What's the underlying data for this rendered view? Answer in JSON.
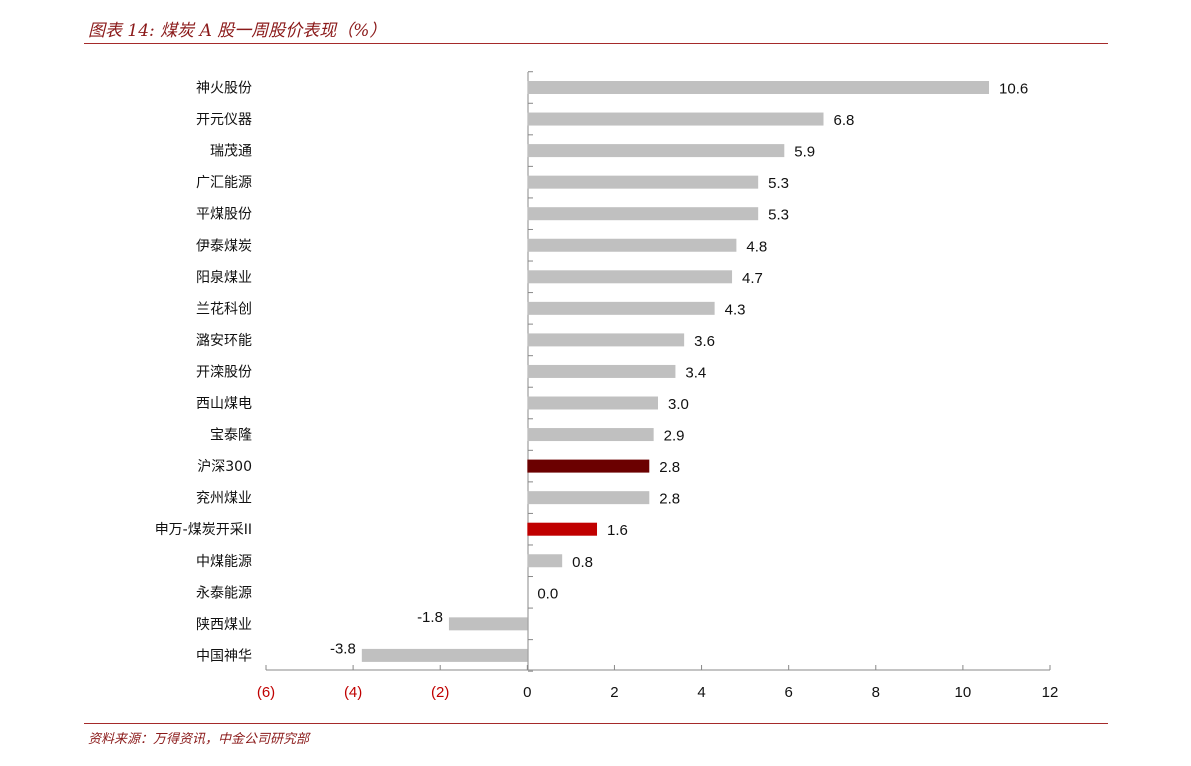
{
  "header": {
    "title": "图表 14:  煤炭 A 股一周股价表现（%）"
  },
  "footer": {
    "source": "资料来源：万得资讯，中金公司研究部"
  },
  "colors": {
    "default_bar": "#c0c0c0",
    "hs300_bar": "#6b0000",
    "sw_index_bar": "#c00000",
    "negative_tick": "#c00000",
    "axis": "#888888"
  },
  "chart_data": {
    "type": "bar",
    "orientation": "horizontal",
    "categories": [
      "神火股份",
      "开元仪器",
      "瑞茂通",
      "广汇能源",
      "平煤股份",
      "伊泰煤炭",
      "阳泉煤业",
      "兰花科创",
      "潞安环能",
      "开滦股份",
      "西山煤电",
      "宝泰隆",
      "沪深300",
      "兖州煤业",
      "申万-煤炭开采II",
      "中煤能源",
      "永泰能源",
      "陕西煤业",
      "中国神华"
    ],
    "values": [
      10.6,
      6.8,
      5.9,
      5.3,
      5.3,
      4.8,
      4.7,
      4.3,
      3.6,
      3.4,
      3.0,
      2.9,
      2.8,
      2.8,
      1.6,
      0.8,
      0.0,
      -1.8,
      -3.8
    ],
    "value_labels": [
      "10.6",
      "6.8",
      "5.9",
      "5.3",
      "5.3",
      "4.8",
      "4.7",
      "4.3",
      "3.6",
      "3.4",
      "3.0",
      "2.9",
      "2.8",
      "2.8",
      "1.6",
      "0.8",
      "0.0",
      "-1.8",
      "-3.8"
    ],
    "highlight": {
      "沪深300": "hs300_bar",
      "申万-煤炭开采II": "sw_index_bar"
    },
    "xlim": [
      -6,
      12
    ],
    "xticks": [
      -6,
      -4,
      -2,
      0,
      2,
      4,
      6,
      8,
      10,
      12
    ],
    "xtick_labels": [
      "(6)",
      "(4)",
      "(2)",
      "0",
      "2",
      "4",
      "6",
      "8",
      "10",
      "12"
    ],
    "grid": false
  }
}
